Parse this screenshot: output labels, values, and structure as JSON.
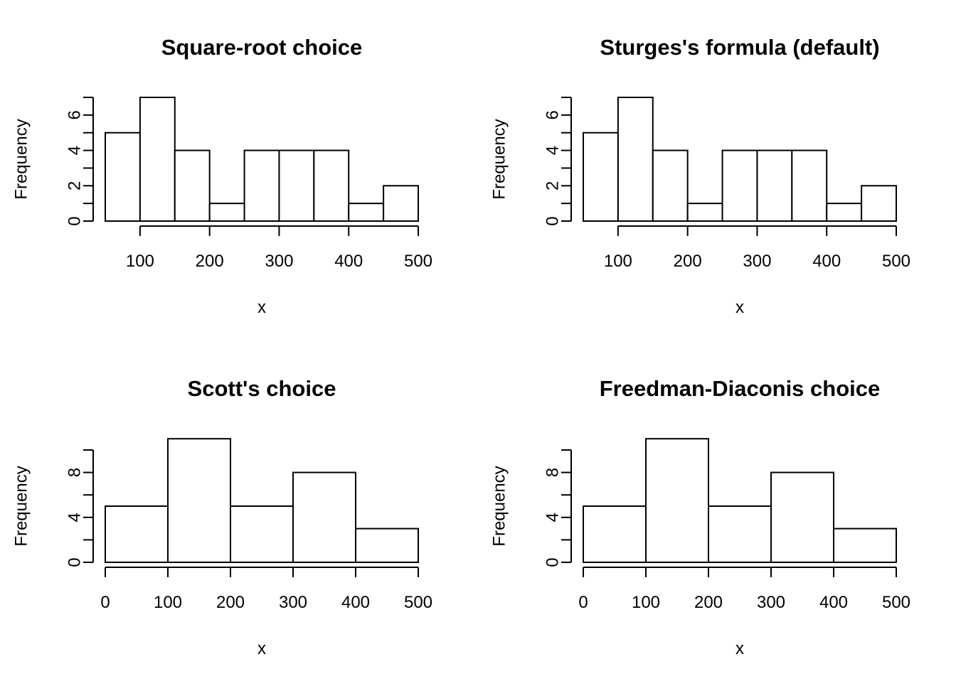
{
  "chart_data": [
    {
      "type": "bar",
      "title": "Square-root choice",
      "xlabel": "x",
      "ylabel": "Frequency",
      "bins": [
        [
          50,
          100
        ],
        [
          100,
          150
        ],
        [
          150,
          200
        ],
        [
          200,
          250
        ],
        [
          250,
          300
        ],
        [
          300,
          350
        ],
        [
          350,
          400
        ],
        [
          400,
          450
        ],
        [
          450,
          500
        ]
      ],
      "values": [
        5,
        7,
        4,
        1,
        4,
        4,
        4,
        1,
        2
      ],
      "xlim": [
        50,
        500
      ],
      "ylim": [
        0,
        7
      ],
      "x_ticks": [
        100,
        200,
        300,
        400,
        500
      ],
      "y_ticks": [
        0,
        1,
        2,
        3,
        4,
        5,
        6,
        7
      ],
      "y_tick_labels": [
        0,
        2,
        4,
        6
      ],
      "grid": false
    },
    {
      "type": "bar",
      "title": "Sturges's formula (default)",
      "xlabel": "x",
      "ylabel": "Frequency",
      "bins": [
        [
          50,
          100
        ],
        [
          100,
          150
        ],
        [
          150,
          200
        ],
        [
          200,
          250
        ],
        [
          250,
          300
        ],
        [
          300,
          350
        ],
        [
          350,
          400
        ],
        [
          400,
          450
        ],
        [
          450,
          500
        ]
      ],
      "values": [
        5,
        7,
        4,
        1,
        4,
        4,
        4,
        1,
        2
      ],
      "xlim": [
        50,
        500
      ],
      "ylim": [
        0,
        7
      ],
      "x_ticks": [
        100,
        200,
        300,
        400,
        500
      ],
      "y_ticks": [
        0,
        1,
        2,
        3,
        4,
        5,
        6,
        7
      ],
      "y_tick_labels": [
        0,
        2,
        4,
        6
      ],
      "grid": false
    },
    {
      "type": "bar",
      "title": "Scott's choice",
      "xlabel": "x",
      "ylabel": "Frequency",
      "bins": [
        [
          0,
          100
        ],
        [
          100,
          200
        ],
        [
          200,
          300
        ],
        [
          300,
          400
        ],
        [
          400,
          500
        ]
      ],
      "values": [
        5,
        11,
        5,
        8,
        3
      ],
      "xlim": [
        0,
        500
      ],
      "ylim": [
        0,
        10
      ],
      "x_ticks": [
        0,
        100,
        200,
        300,
        400,
        500
      ],
      "y_ticks": [
        0,
        2,
        4,
        6,
        8,
        10
      ],
      "y_tick_labels": [
        0,
        4,
        8
      ],
      "grid": false
    },
    {
      "type": "bar",
      "title": "Freedman-Diaconis choice",
      "xlabel": "x",
      "ylabel": "Frequency",
      "bins": [
        [
          0,
          100
        ],
        [
          100,
          200
        ],
        [
          200,
          300
        ],
        [
          300,
          400
        ],
        [
          400,
          500
        ]
      ],
      "values": [
        5,
        11,
        5,
        8,
        3
      ],
      "xlim": [
        0,
        500
      ],
      "ylim": [
        0,
        10
      ],
      "x_ticks": [
        0,
        100,
        200,
        300,
        400,
        500
      ],
      "y_ticks": [
        0,
        2,
        4,
        6,
        8,
        10
      ],
      "y_tick_labels": [
        0,
        4,
        8
      ],
      "grid": false
    }
  ]
}
